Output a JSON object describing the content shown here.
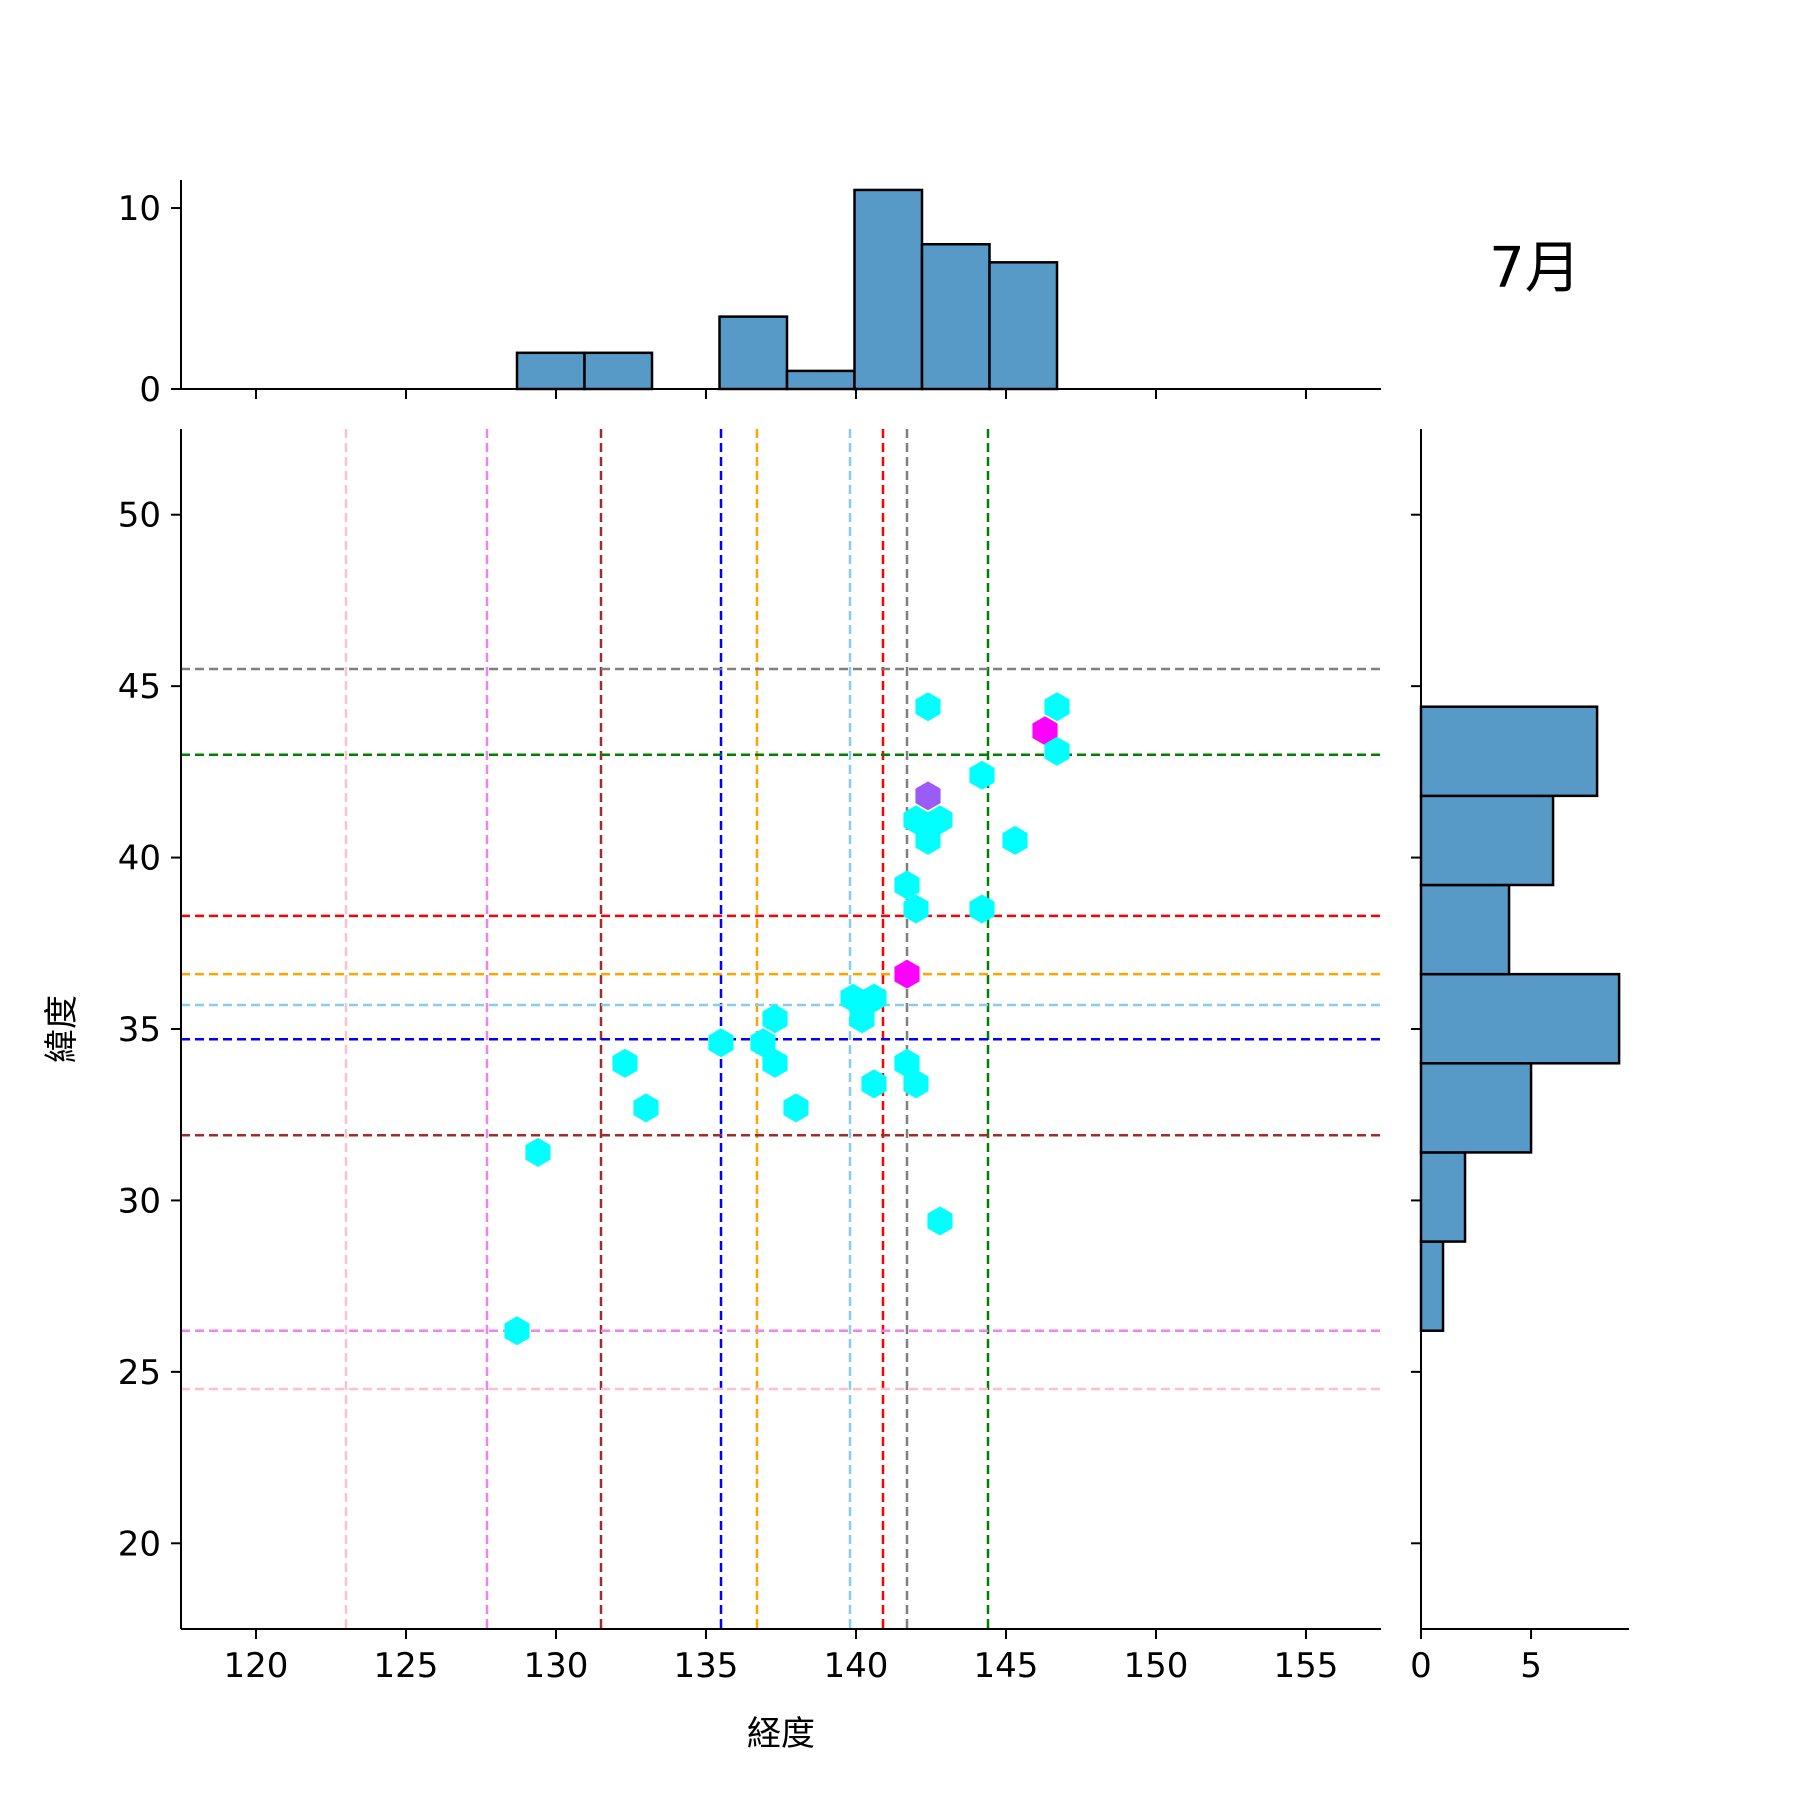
{
  "chart_data": {
    "type": "scatter",
    "month_label": "7月",
    "xlabel": "経度",
    "ylabel": "緯度",
    "xlim": [
      117.5,
      157.5
    ],
    "ylim": [
      17.5,
      52.5
    ],
    "x_ticks": [
      120,
      125,
      130,
      135,
      140,
      145,
      150,
      155
    ],
    "y_ticks": [
      20,
      25,
      30,
      35,
      40,
      45,
      50
    ],
    "hexbin": {
      "low_color": "#00ffff",
      "mid_color": "#9b5cf5",
      "high_color": "#ff00ff",
      "points": [
        {
          "lon": 128.7,
          "lat": 26.2,
          "level": "low"
        },
        {
          "lon": 129.4,
          "lat": 31.4,
          "level": "low"
        },
        {
          "lon": 132.3,
          "lat": 34.0,
          "level": "low"
        },
        {
          "lon": 133.0,
          "lat": 32.7,
          "level": "low"
        },
        {
          "lon": 135.5,
          "lat": 34.6,
          "level": "low"
        },
        {
          "lon": 136.9,
          "lat": 34.6,
          "level": "low"
        },
        {
          "lon": 137.3,
          "lat": 35.3,
          "level": "low"
        },
        {
          "lon": 137.3,
          "lat": 34.0,
          "level": "low"
        },
        {
          "lon": 138.0,
          "lat": 32.7,
          "level": "low"
        },
        {
          "lon": 139.9,
          "lat": 35.9,
          "level": "low"
        },
        {
          "lon": 140.2,
          "lat": 35.3,
          "level": "low"
        },
        {
          "lon": 140.6,
          "lat": 35.9,
          "level": "low"
        },
        {
          "lon": 140.6,
          "lat": 33.4,
          "level": "low"
        },
        {
          "lon": 141.7,
          "lat": 36.6,
          "level": "high"
        },
        {
          "lon": 141.7,
          "lat": 39.2,
          "level": "low"
        },
        {
          "lon": 142.0,
          "lat": 38.5,
          "level": "low"
        },
        {
          "lon": 141.7,
          "lat": 34.0,
          "level": "low"
        },
        {
          "lon": 142.0,
          "lat": 33.4,
          "level": "low"
        },
        {
          "lon": 142.8,
          "lat": 29.4,
          "level": "low"
        },
        {
          "lon": 142.0,
          "lat": 41.1,
          "level": "low"
        },
        {
          "lon": 142.8,
          "lat": 41.1,
          "level": "low"
        },
        {
          "lon": 142.4,
          "lat": 40.5,
          "level": "low"
        },
        {
          "lon": 142.4,
          "lat": 41.8,
          "level": "mid"
        },
        {
          "lon": 142.4,
          "lat": 44.4,
          "level": "low"
        },
        {
          "lon": 144.2,
          "lat": 42.4,
          "level": "low"
        },
        {
          "lon": 144.2,
          "lat": 38.5,
          "level": "low"
        },
        {
          "lon": 145.3,
          "lat": 40.5,
          "level": "low"
        },
        {
          "lon": 146.3,
          "lat": 43.7,
          "level": "high"
        },
        {
          "lon": 146.7,
          "lat": 44.4,
          "level": "low"
        },
        {
          "lon": 146.7,
          "lat": 43.1,
          "level": "low"
        }
      ]
    },
    "reference_lines": {
      "vertical": [
        {
          "value": 123.0,
          "color": "#ffc0cb"
        },
        {
          "value": 127.7,
          "color": "#ee82ee"
        },
        {
          "value": 131.5,
          "color": "#a52a2a"
        },
        {
          "value": 135.5,
          "color": "#0000ff"
        },
        {
          "value": 136.7,
          "color": "#ffa500"
        },
        {
          "value": 139.8,
          "color": "#87ceeb"
        },
        {
          "value": 140.9,
          "color": "#ff0000"
        },
        {
          "value": 141.7,
          "color": "#808080"
        },
        {
          "value": 144.4,
          "color": "#008000"
        }
      ],
      "horizontal": [
        {
          "value": 45.5,
          "color": "#808080"
        },
        {
          "value": 43.0,
          "color": "#008000"
        },
        {
          "value": 38.3,
          "color": "#ff0000"
        },
        {
          "value": 36.6,
          "color": "#ffa500"
        },
        {
          "value": 35.7,
          "color": "#87ceeb"
        },
        {
          "value": 34.7,
          "color": "#0000ff"
        },
        {
          "value": 31.9,
          "color": "#a52a2a"
        },
        {
          "value": 26.2,
          "color": "#ee82ee"
        },
        {
          "value": 24.5,
          "color": "#ffc0cb"
        }
      ]
    },
    "top_histogram": {
      "bar_color": "#5799c7",
      "ylim": [
        0,
        11.55
      ],
      "y_ticks": [
        0,
        10
      ],
      "bins": [
        {
          "start": 128.7,
          "end": 130.95,
          "count": 2
        },
        {
          "start": 130.95,
          "end": 133.2,
          "count": 2
        },
        {
          "start": 133.2,
          "end": 135.45,
          "count": 0
        },
        {
          "start": 135.45,
          "end": 137.7,
          "count": 4
        },
        {
          "start": 137.7,
          "end": 139.95,
          "count": 1
        },
        {
          "start": 139.95,
          "end": 142.2,
          "count": 11
        },
        {
          "start": 142.2,
          "end": 144.45,
          "count": 8
        },
        {
          "start": 144.45,
          "end": 146.7,
          "count": 7
        }
      ]
    },
    "right_histogram": {
      "bar_color": "#5799c7",
      "xlim": [
        0,
        9.45
      ],
      "x_ticks": [
        0,
        5
      ],
      "bins": [
        {
          "start": 26.2,
          "end": 28.8,
          "count": 1
        },
        {
          "start": 28.8,
          "end": 31.4,
          "count": 2
        },
        {
          "start": 31.4,
          "end": 34.0,
          "count": 5
        },
        {
          "start": 34.0,
          "end": 36.6,
          "count": 9
        },
        {
          "start": 36.6,
          "end": 39.2,
          "count": 4
        },
        {
          "start": 39.2,
          "end": 41.8,
          "count": 6
        },
        {
          "start": 41.8,
          "end": 44.4,
          "count": 8
        }
      ]
    }
  }
}
